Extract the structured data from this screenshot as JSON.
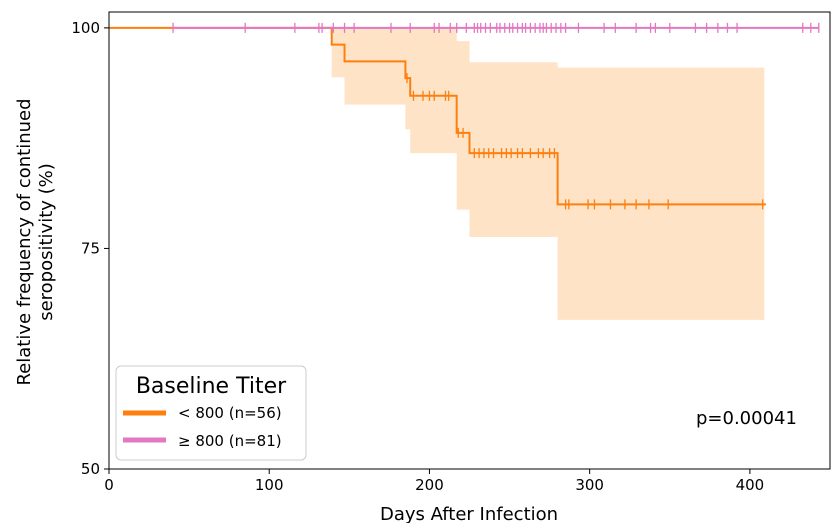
{
  "chart_data": {
    "type": "line",
    "subtype": "kaplan-meier",
    "title": "",
    "xlabel": "Days After Infection",
    "ylabel_line1": "Relative frequency of continued",
    "ylabel_line2": "seropositivity (%)",
    "xlim": [
      0,
      450
    ],
    "ylim": [
      50,
      101.8
    ],
    "xticks": [
      0,
      100,
      200,
      300,
      400
    ],
    "yticks": [
      50,
      75,
      100
    ],
    "xtick_labels": [
      "0",
      "100",
      "200",
      "300",
      "400"
    ],
    "ytick_labels": [
      "50",
      "75",
      "100"
    ],
    "grid": false,
    "legend": {
      "title": "Baseline Titer",
      "placement": "lower-left",
      "entries": [
        "< 800 (n=56)",
        "≥ 800 (n=81)"
      ]
    },
    "annotation": "p=0.00041",
    "colors": {
      "low_titer": "#ff7f0e",
      "high_titer": "#e377c2",
      "ci_fill": "#ffd9b3"
    },
    "series": [
      {
        "name": "< 800 (n=56)",
        "color": "#ff7f0e",
        "steps": [
          [
            0,
            100
          ],
          [
            139,
            100
          ],
          [
            139,
            98.1
          ],
          [
            147,
            98.1
          ],
          [
            147,
            96.2
          ],
          [
            185,
            96.2
          ],
          [
            185,
            94.3
          ],
          [
            188,
            94.3
          ],
          [
            188,
            92.3
          ],
          [
            217,
            92.3
          ],
          [
            217,
            88.1
          ],
          [
            225,
            88.1
          ],
          [
            225,
            85.8
          ],
          [
            280,
            85.8
          ],
          [
            280,
            80.0
          ],
          [
            410,
            80.0
          ]
        ],
        "censored_x": [
          186,
          190,
          196,
          200,
          203,
          210,
          212,
          218,
          221,
          228,
          231,
          234,
          237,
          240,
          245,
          248,
          251,
          255,
          258,
          263,
          268,
          271,
          275,
          278,
          285,
          287,
          299,
          303,
          313,
          322,
          329,
          337,
          349,
          408
        ],
        "ci_upper": [
          [
            139,
            100
          ],
          [
            217,
            100
          ],
          [
            217,
            98.5
          ],
          [
            225,
            98.5
          ],
          [
            225,
            96.1
          ],
          [
            280,
            96.1
          ],
          [
            280,
            95.5
          ],
          [
            409,
            95.5
          ]
        ],
        "ci_lower": [
          [
            139,
            94.4
          ],
          [
            147,
            94.4
          ],
          [
            147,
            91.3
          ],
          [
            185,
            91.3
          ],
          [
            185,
            88.5
          ],
          [
            188,
            88.5
          ],
          [
            188,
            85.8
          ],
          [
            217,
            85.8
          ],
          [
            217,
            79.4
          ],
          [
            225,
            79.4
          ],
          [
            225,
            76.3
          ],
          [
            280,
            76.3
          ],
          [
            280,
            66.9
          ],
          [
            409,
            66.9
          ]
        ]
      },
      {
        "name": "≥ 800 (n=81)",
        "color": "#e377c2",
        "steps": [
          [
            40,
            100
          ],
          [
            443,
            100
          ]
        ],
        "censored_x": [
          40,
          85,
          116,
          131,
          133,
          140,
          147,
          153,
          176,
          188,
          203,
          206,
          213,
          217,
          223,
          228,
          230,
          232,
          235,
          238,
          242,
          244,
          247,
          250,
          252,
          255,
          258,
          260,
          263,
          266,
          269,
          271,
          273,
          276,
          279,
          282,
          285,
          293,
          309,
          316,
          329,
          338,
          341,
          350,
          366,
          373,
          380,
          386,
          392,
          433,
          438,
          443
        ]
      }
    ]
  }
}
